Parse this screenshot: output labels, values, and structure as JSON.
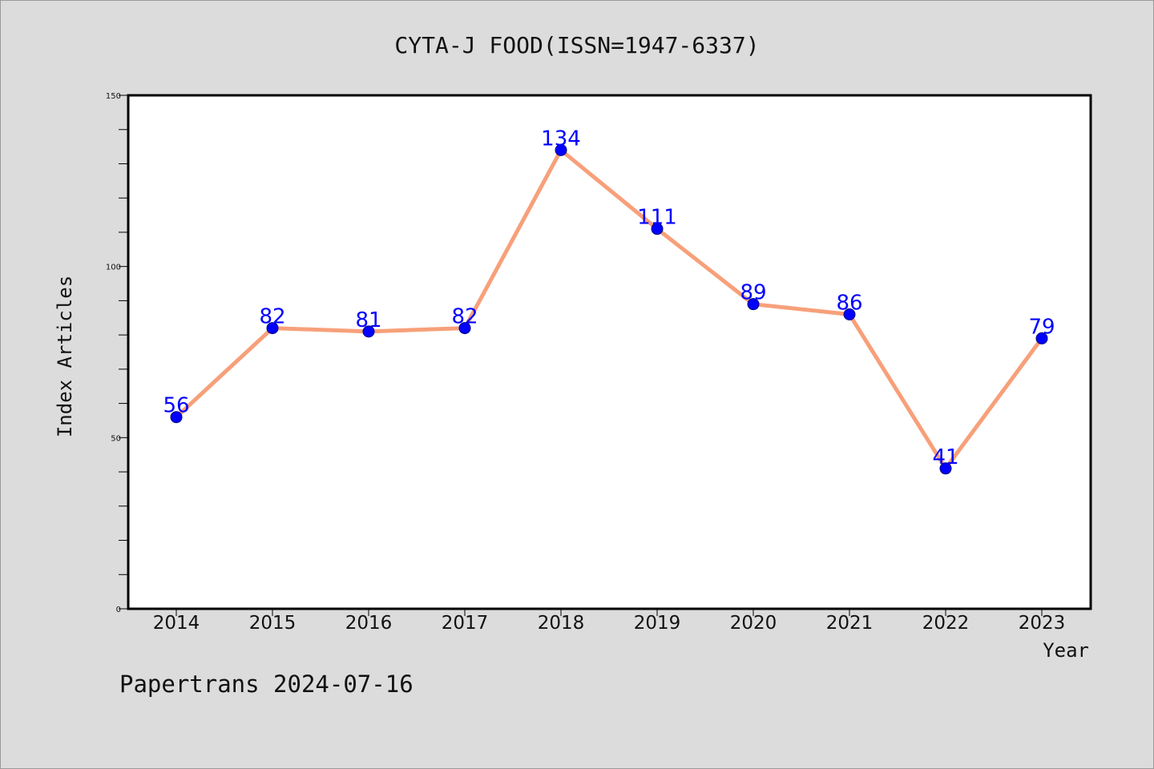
{
  "footer": {
    "text": "Papertrans 2024-07-16"
  },
  "chart_data": {
    "type": "line",
    "title": "CYTA-J FOOD(ISSN=1947-6337)",
    "xlabel": "Year",
    "ylabel": "Index Articles",
    "categories": [
      "2014",
      "2015",
      "2016",
      "2017",
      "2018",
      "2019",
      "2020",
      "2021",
      "2022",
      "2023"
    ],
    "series": [
      {
        "values": [
          56,
          82,
          81,
          82,
          134,
          111,
          89,
          86,
          41,
          79
        ]
      }
    ],
    "ylim": [
      0,
      150
    ],
    "yticks": [
      0,
      50,
      100,
      150
    ],
    "grid": false,
    "legend": "none",
    "line_color": "#f7a07a",
    "marker_color": "#0000ff",
    "label_color": "#0000ff",
    "plot_background": "#ffffff",
    "page_background": "#dcdcdc"
  }
}
